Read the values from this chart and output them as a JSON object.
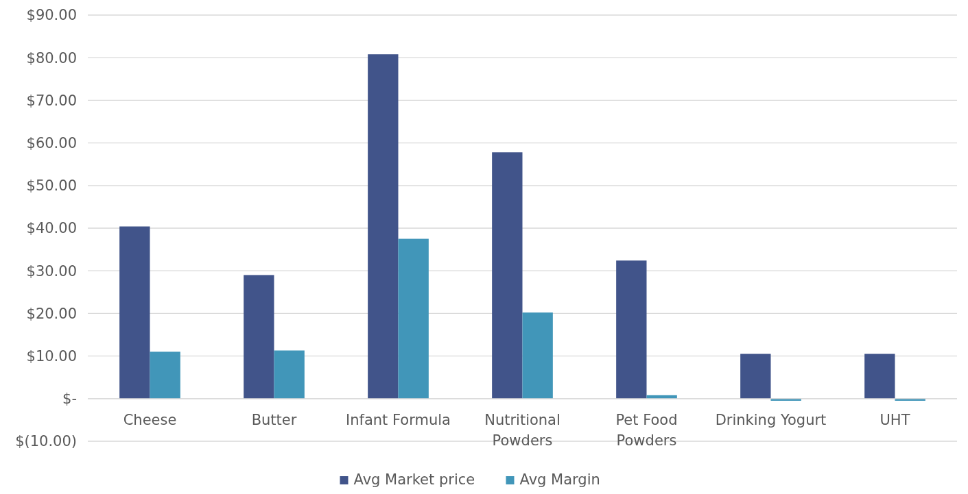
{
  "chart_data": {
    "type": "bar",
    "categories": [
      "Cheese",
      "Butter",
      "Infant Formula",
      "Nutritional Powders",
      "Pet Food Powders",
      "Drinking Yogurt",
      "UHT"
    ],
    "series": [
      {
        "name": "Avg Market price",
        "color": "#41548a",
        "values": [
          40.4,
          29.0,
          80.8,
          57.8,
          32.4,
          10.5,
          10.5
        ]
      },
      {
        "name": "Avg Margin",
        "color": "#4196b9",
        "values": [
          11.0,
          11.3,
          37.5,
          20.2,
          0.8,
          -0.5,
          -0.5
        ]
      }
    ],
    "ylim": [
      -10,
      90
    ],
    "yticks": [
      {
        "value": -10,
        "label": "$(10.00)"
      },
      {
        "value": 0,
        "label": "$-"
      },
      {
        "value": 10,
        "label": "$10.00"
      },
      {
        "value": 20,
        "label": "$20.00"
      },
      {
        "value": 30,
        "label": "$30.00"
      },
      {
        "value": 40,
        "label": "$40.00"
      },
      {
        "value": 50,
        "label": "$50.00"
      },
      {
        "value": 60,
        "label": "$60.00"
      },
      {
        "value": 70,
        "label": "$70.00"
      },
      {
        "value": 80,
        "label": "$80.00"
      },
      {
        "value": 90,
        "label": "$90.00"
      }
    ],
    "grid": "y",
    "legend": "bottom"
  }
}
